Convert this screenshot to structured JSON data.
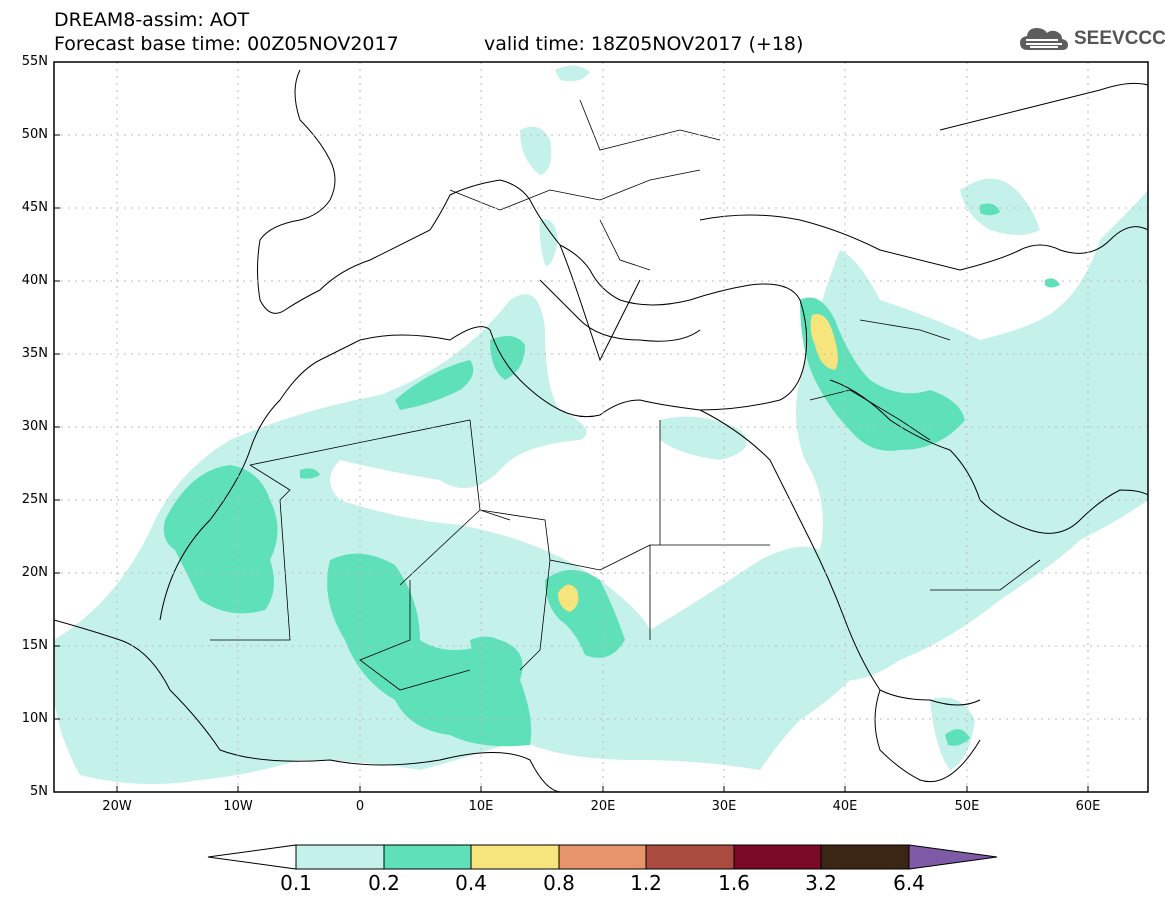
{
  "header": {
    "title_line1": "DREAM8-assim: AOT",
    "base_time": "Forecast base time: 00Z05NOV2017",
    "valid_time": "valid time: 18Z05NOV2017 (+18)",
    "logo_text": "SEEVCCC"
  },
  "map": {
    "lat_labels": [
      "55N",
      "50N",
      "45N",
      "40N",
      "35N",
      "30N",
      "25N",
      "20N",
      "15N",
      "10N",
      "5N"
    ],
    "lon_labels": [
      "20W",
      "10W",
      "0",
      "10E",
      "20E",
      "30E",
      "40E",
      "50E",
      "60E"
    ],
    "lat_range": [
      5,
      55
    ],
    "lon_range": [
      -25,
      65
    ]
  },
  "colorbar": {
    "labels": [
      "0.1",
      "0.2",
      "0.4",
      "0.8",
      "1.2",
      "1.6",
      "3.2",
      "6.4"
    ],
    "colors": [
      "#ffffff",
      "#c4f1ea",
      "#5ee0b8",
      "#f6e47c",
      "#e8946a",
      "#a94b3e",
      "#7a0a28",
      "#3b2616",
      "#7f5aa6"
    ]
  }
}
